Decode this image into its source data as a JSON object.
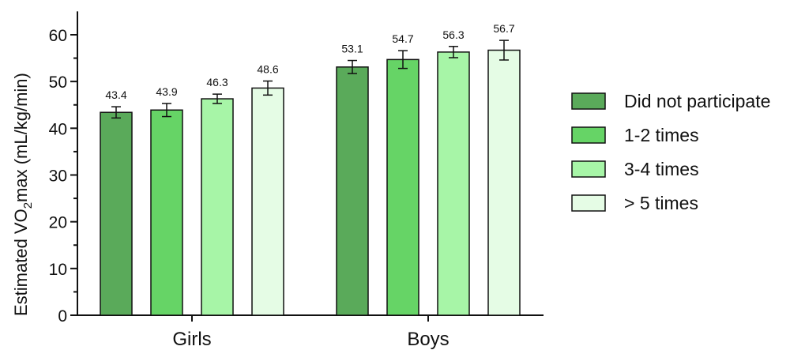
{
  "chart_data": {
    "type": "bar",
    "categories": [
      "Girls",
      "Boys"
    ],
    "series": [
      {
        "name": "Did not participate",
        "color": "#5aaa5a",
        "values": [
          43.4,
          53.1
        ],
        "error": [
          1.2,
          1.4
        ]
      },
      {
        "name": "1-2 times",
        "color": "#66d466",
        "values": [
          43.9,
          54.7
        ],
        "error": [
          1.4,
          1.9
        ]
      },
      {
        "name": "3-4 times",
        "color": "#a7f5a7",
        "values": [
          46.3,
          56.3
        ],
        "error": [
          1.0,
          1.2
        ]
      },
      {
        "name": "> 5 times",
        "color": "#e5fce5",
        "values": [
          48.6,
          56.7
        ],
        "error": [
          1.5,
          2.1
        ]
      }
    ],
    "data_labels": [
      [
        "43.4",
        "53.1"
      ],
      [
        "43.9",
        "54.7"
      ],
      [
        "46.3",
        "56.3"
      ],
      [
        "48.6",
        "56.7"
      ]
    ],
    "ylabel": {
      "pre": "Estimated VO",
      "sub": "2",
      "post": "max (mL/kg/min)"
    },
    "ylim": [
      0,
      65
    ],
    "yticks": [
      "0",
      "10",
      "20",
      "30",
      "40",
      "50",
      "60"
    ],
    "grid": false,
    "legend_position": "right"
  }
}
